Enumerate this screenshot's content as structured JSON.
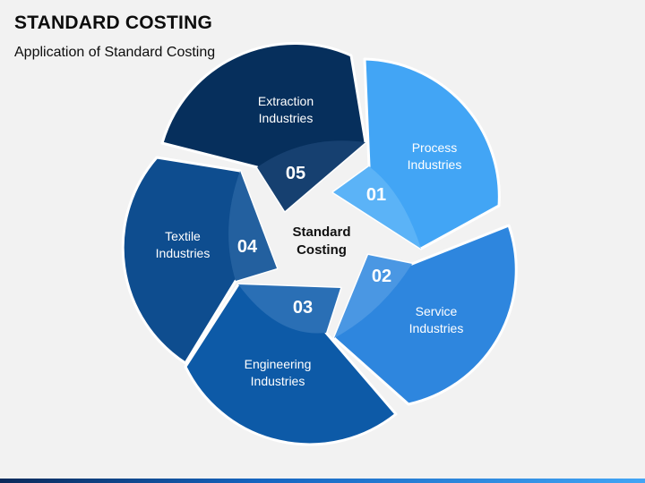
{
  "title": "STANDARD COSTING",
  "subtitle": "Application of Standard Costing",
  "center": {
    "line1": "Standard",
    "line2": "Costing"
  },
  "segments": [
    {
      "number": "01",
      "line1": "Process",
      "line2": "Industries",
      "color": "#42a5f5",
      "shade": "#5bb3f7"
    },
    {
      "number": "02",
      "line1": "Service",
      "line2": "Industries",
      "color": "#2e86de",
      "shade": "#4a97e3"
    },
    {
      "number": "03",
      "line1": "Engineering",
      "line2": "Industries",
      "color": "#0d5aa7",
      "shade": "#2a6fb5"
    },
    {
      "number": "04",
      "line1": "Textile",
      "line2": "Industries",
      "color": "#0e4d8f",
      "shade": "#23609f"
    },
    {
      "number": "05",
      "line1": "Extraction",
      "line2": "Industries",
      "color": "#062f5c",
      "shade": "#164070"
    }
  ]
}
